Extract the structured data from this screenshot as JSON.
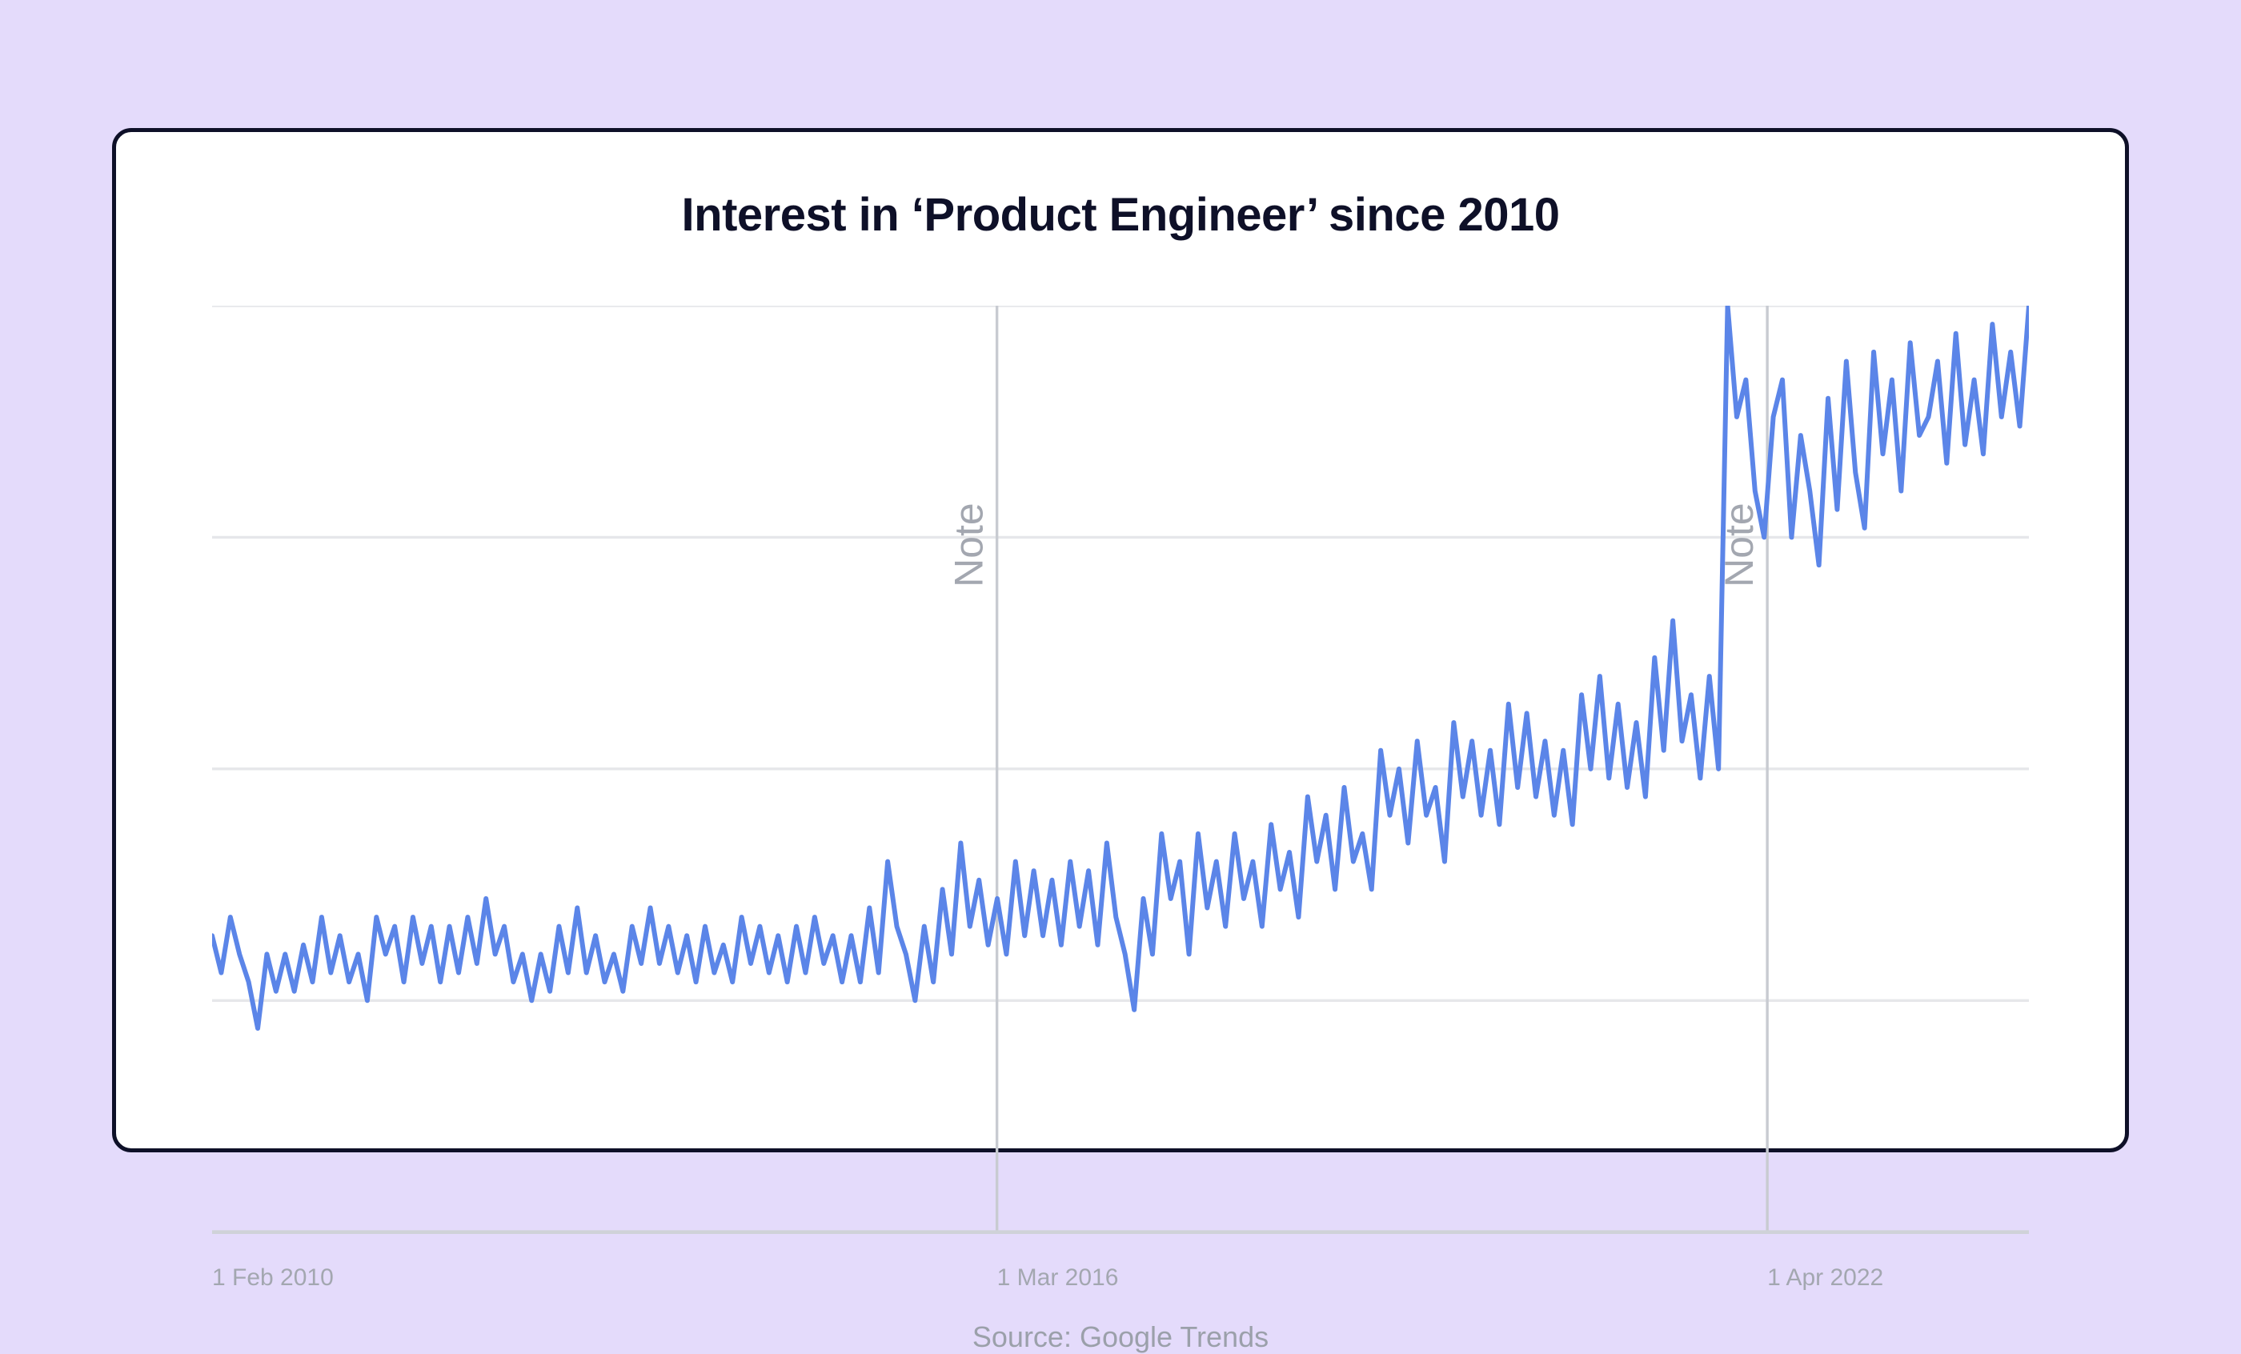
{
  "chart": {
    "type": "line",
    "title": "Interest in ‘Product Engineer’ since 2010",
    "source": "Source: Google Trends",
    "background_color": "#ffffff",
    "page_background": "#e4dbfb",
    "card_border_color": "#0e1028",
    "title_color": "#0e1028",
    "title_fontsize": 58,
    "source_color": "#9ba0aa",
    "source_fontsize": 36,
    "line_color": "#5b85e8",
    "line_width": 6,
    "grid_color": "#e6e7ea",
    "axis_color": "#cfd2d8",
    "note_line_color": "#c8cbd1",
    "note_text_color": "#a3a7b0",
    "xlabel_color": "#a3a7b0",
    "xlabel_fontsize": 30,
    "ylim": [
      0,
      100
    ],
    "gridlines_y": [
      25,
      50,
      75,
      100
    ],
    "x_axis_labels": [
      {
        "label": "1 Feb 2010",
        "pos": 0.0
      },
      {
        "label": "1 Mar 2016",
        "pos": 0.432
      },
      {
        "label": "1 Apr 2022",
        "pos": 0.856
      }
    ],
    "note_markers": [
      {
        "pos": 0.432,
        "label": "Note"
      },
      {
        "pos": 0.856,
        "label": "Note"
      }
    ],
    "values": [
      32,
      28,
      34,
      30,
      27,
      22,
      30,
      26,
      30,
      26,
      31,
      27,
      34,
      28,
      32,
      27,
      30,
      25,
      34,
      30,
      33,
      27,
      34,
      29,
      33,
      27,
      33,
      28,
      34,
      29,
      36,
      30,
      33,
      27,
      30,
      25,
      30,
      26,
      33,
      28,
      35,
      28,
      32,
      27,
      30,
      26,
      33,
      29,
      35,
      29,
      33,
      28,
      32,
      27,
      33,
      28,
      31,
      27,
      34,
      29,
      33,
      28,
      32,
      27,
      33,
      28,
      34,
      29,
      32,
      27,
      32,
      27,
      35,
      28,
      40,
      33,
      30,
      25,
      33,
      27,
      37,
      30,
      42,
      33,
      38,
      31,
      36,
      30,
      40,
      32,
      39,
      32,
      38,
      31,
      40,
      33,
      39,
      31,
      42,
      34,
      30,
      24,
      36,
      30,
      43,
      36,
      40,
      30,
      43,
      35,
      40,
      33,
      43,
      36,
      40,
      33,
      44,
      37,
      41,
      34,
      47,
      40,
      45,
      37,
      48,
      40,
      43,
      37,
      52,
      45,
      50,
      42,
      53,
      45,
      48,
      40,
      55,
      47,
      53,
      45,
      52,
      44,
      57,
      48,
      56,
      47,
      53,
      45,
      52,
      44,
      58,
      50,
      60,
      49,
      57,
      48,
      55,
      47,
      62,
      52,
      66,
      53,
      58,
      49,
      60,
      50,
      100,
      88,
      92,
      80,
      75,
      88,
      92,
      75,
      86,
      80,
      72,
      90,
      78,
      94,
      82,
      76,
      95,
      84,
      92,
      80,
      96,
      86,
      88,
      94,
      83,
      97,
      85,
      92,
      84,
      98,
      88,
      95,
      87,
      100
    ]
  }
}
